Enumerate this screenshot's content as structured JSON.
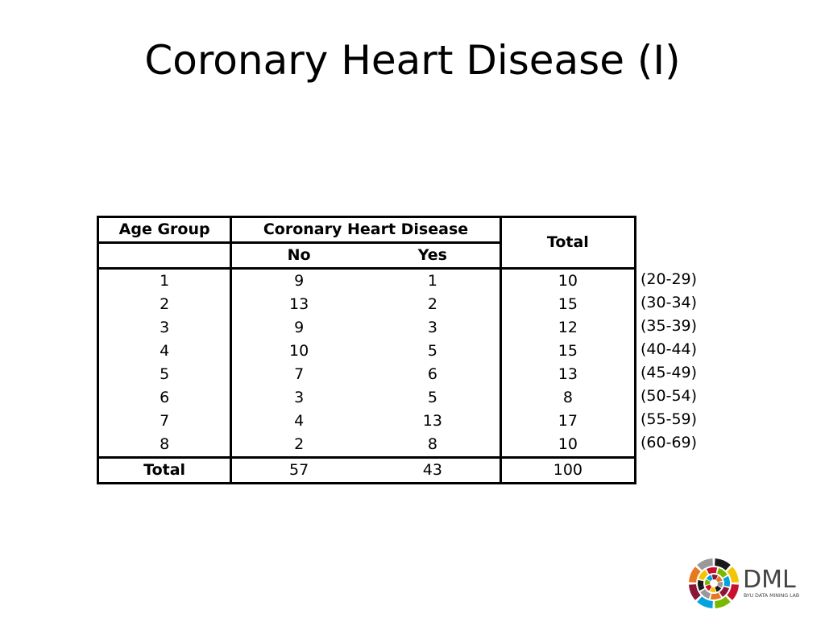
{
  "slide": {
    "title": "Coronary Heart Disease (I)"
  },
  "table": {
    "header": {
      "age_group": "Age Group",
      "disease": "Coronary Heart Disease",
      "no": "No",
      "yes": "Yes",
      "total": "Total"
    },
    "rows": [
      {
        "age_group": "1",
        "no": "9",
        "yes": "1",
        "total": "10",
        "range": "(20-29)"
      },
      {
        "age_group": "2",
        "no": "13",
        "yes": "2",
        "total": "15",
        "range": "(30-34)"
      },
      {
        "age_group": "3",
        "no": "9",
        "yes": "3",
        "total": "12",
        "range": "(35-39)"
      },
      {
        "age_group": "4",
        "no": "10",
        "yes": "5",
        "total": "15",
        "range": "(40-44)"
      },
      {
        "age_group": "5",
        "no": "7",
        "yes": "6",
        "total": "13",
        "range": "(45-49)"
      },
      {
        "age_group": "6",
        "no": "3",
        "yes": "5",
        "total": "8",
        "range": "(50-54)"
      },
      {
        "age_group": "7",
        "no": "4",
        "yes": "13",
        "total": "17",
        "range": "(55-59)"
      },
      {
        "age_group": "8",
        "no": "2",
        "yes": "8",
        "total": "10",
        "range": "(60-69)"
      }
    ],
    "footer": {
      "label": "Total",
      "no": "57",
      "yes": "43",
      "total": "100"
    }
  },
  "logo": {
    "name": "DML",
    "subtitle": "BYU DATA MINING LAB",
    "icon": "dml-ring-logo",
    "colors": [
      "#1a1a1a",
      "#f2c500",
      "#c8102e",
      "#7ab800",
      "#00a3e0",
      "#8a1538",
      "#e87722",
      "#999999"
    ]
  }
}
